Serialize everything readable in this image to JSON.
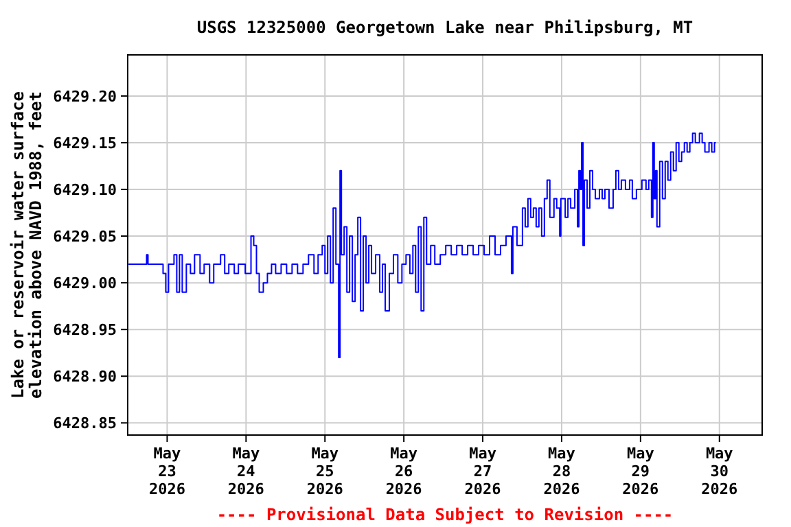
{
  "chart_data": {
    "type": "step",
    "title": "USGS 12325000 Georgetown Lake near Philipsburg, MT",
    "ylabel": "Lake or reservoir water surface\nelevation above NAVD 1988, feet",
    "annotations": [
      "---- Provisional Data Subject to Revision ----"
    ],
    "xlim": [
      "2026-05-22T12:00",
      "2026-05-30T13:00"
    ],
    "xticks": [
      {
        "value": "2026-05-23",
        "label": "May\n23\n2026"
      },
      {
        "value": "2026-05-24",
        "label": "May\n24\n2026"
      },
      {
        "value": "2026-05-25",
        "label": "May\n25\n2026"
      },
      {
        "value": "2026-05-26",
        "label": "May\n26\n2026"
      },
      {
        "value": "2026-05-27",
        "label": "May\n27\n2026"
      },
      {
        "value": "2026-05-28",
        "label": "May\n28\n2026"
      },
      {
        "value": "2026-05-29",
        "label": "May\n29\n2026"
      },
      {
        "value": "2026-05-30",
        "label": "May\n30\n2026"
      }
    ],
    "ylim": [
      6428.837,
      6429.244
    ],
    "yticks": [
      {
        "value": 6428.85,
        "label": "6428.85"
      },
      {
        "value": 6428.9,
        "label": "6428.90"
      },
      {
        "value": 6428.95,
        "label": "6428.95"
      },
      {
        "value": 6429,
        "label": "6429.00"
      },
      {
        "value": 6429.05,
        "label": "6429.05"
      },
      {
        "value": 6429.1,
        "label": "6429.10"
      },
      {
        "value": 6429.15,
        "label": "6429.15"
      },
      {
        "value": 6429.2,
        "label": "6429.20"
      }
    ],
    "grid": true,
    "series": [
      {
        "color": "#0000ff",
        "x": [
          "2026-05-22T12:15",
          "2026-05-22T17:20",
          "2026-05-22T17:45",
          "2026-05-22T18:10",
          "2026-05-22T22:20",
          "2026-05-22T22:45",
          "2026-05-22T23:35",
          "2026-05-23T00:25",
          "2026-05-23T02:05",
          "2026-05-23T02:55",
          "2026-05-23T03:45",
          "2026-05-23T04:35",
          "2026-05-23T05:50",
          "2026-05-23T07:05",
          "2026-05-23T08:20",
          "2026-05-23T10:00",
          "2026-05-23T11:15",
          "2026-05-23T12:55",
          "2026-05-23T14:10",
          "2026-05-23T16:15",
          "2026-05-23T17:30",
          "2026-05-23T18:45",
          "2026-05-23T20:25",
          "2026-05-23T21:40",
          "2026-05-23T23:45",
          "2026-05-24T01:30",
          "2026-05-24T02:20",
          "2026-05-24T03:10",
          "2026-05-24T04:00",
          "2026-05-24T05:15",
          "2026-05-24T06:30",
          "2026-05-24T07:45",
          "2026-05-24T09:00",
          "2026-05-24T10:40",
          "2026-05-24T12:20",
          "2026-05-24T14:00",
          "2026-05-24T15:40",
          "2026-05-24T17:20",
          "2026-05-24T19:00",
          "2026-05-24T20:40",
          "2026-05-24T21:55",
          "2026-05-24T23:10",
          "2026-05-25T00:00",
          "2026-05-25T00:50",
          "2026-05-25T01:40",
          "2026-05-25T02:30",
          "2026-05-25T03:20",
          "2026-05-25T04:10",
          "2026-05-25T04:35",
          "2026-05-25T05:00",
          "2026-05-25T05:50",
          "2026-05-25T06:40",
          "2026-05-25T07:30",
          "2026-05-25T08:20",
          "2026-05-25T09:10",
          "2026-05-25T10:00",
          "2026-05-25T10:50",
          "2026-05-25T11:40",
          "2026-05-25T12:30",
          "2026-05-25T13:20",
          "2026-05-25T14:10",
          "2026-05-25T15:25",
          "2026-05-25T16:40",
          "2026-05-25T17:30",
          "2026-05-25T18:20",
          "2026-05-25T19:35",
          "2026-05-25T20:50",
          "2026-05-25T22:10",
          "2026-05-25T23:25",
          "2026-05-26T00:40",
          "2026-05-26T01:50",
          "2026-05-26T02:45",
          "2026-05-26T03:35",
          "2026-05-26T04:25",
          "2026-05-26T05:15",
          "2026-05-26T06:05",
          "2026-05-26T06:55",
          "2026-05-26T08:10",
          "2026-05-26T09:25",
          "2026-05-26T11:05",
          "2026-05-26T12:45",
          "2026-05-26T14:25",
          "2026-05-26T16:05",
          "2026-05-26T17:45",
          "2026-05-26T19:25",
          "2026-05-26T21:05",
          "2026-05-26T22:45",
          "2026-05-27T00:25",
          "2026-05-27T02:05",
          "2026-05-27T03:45",
          "2026-05-27T05:25",
          "2026-05-27T07:05",
          "2026-05-27T08:45",
          "2026-05-27T09:10",
          "2026-05-27T10:25",
          "2026-05-27T12:05",
          "2026-05-27T12:55",
          "2026-05-27T13:45",
          "2026-05-27T14:35",
          "2026-05-27T15:25",
          "2026-05-27T16:15",
          "2026-05-27T17:05",
          "2026-05-27T17:55",
          "2026-05-27T18:45",
          "2026-05-27T19:35",
          "2026-05-27T20:25",
          "2026-05-27T21:40",
          "2026-05-27T22:30",
          "2026-05-27T23:25",
          "2026-05-27T23:45",
          "2026-05-28T01:05",
          "2026-05-28T01:55",
          "2026-05-28T02:45",
          "2026-05-28T04:00",
          "2026-05-28T04:50",
          "2026-05-28T05:15",
          "2026-05-28T05:40",
          "2026-05-28T06:05",
          "2026-05-28T06:30",
          "2026-05-28T06:55",
          "2026-05-28T07:45",
          "2026-05-28T08:35",
          "2026-05-28T09:25",
          "2026-05-28T10:15",
          "2026-05-28T11:30",
          "2026-05-28T12:20",
          "2026-05-28T13:10",
          "2026-05-28T14:25",
          "2026-05-28T15:40",
          "2026-05-28T16:30",
          "2026-05-28T17:20",
          "2026-05-28T18:10",
          "2026-05-28T19:25",
          "2026-05-28T20:40",
          "2026-05-28T21:30",
          "2026-05-28T22:45",
          "2026-05-29T00:25",
          "2026-05-29T01:40",
          "2026-05-29T02:30",
          "2026-05-29T03:20",
          "2026-05-29T03:45",
          "2026-05-29T04:10",
          "2026-05-29T04:35",
          "2026-05-29T05:00",
          "2026-05-29T05:50",
          "2026-05-29T06:40",
          "2026-05-29T07:30",
          "2026-05-29T08:20",
          "2026-05-29T09:10",
          "2026-05-29T10:00",
          "2026-05-29T10:50",
          "2026-05-29T11:40",
          "2026-05-29T12:30",
          "2026-05-29T13:20",
          "2026-05-29T14:10",
          "2026-05-29T15:00",
          "2026-05-29T15:50",
          "2026-05-29T16:40",
          "2026-05-29T17:55",
          "2026-05-29T18:45",
          "2026-05-29T19:35",
          "2026-05-29T20:50",
          "2026-05-29T21:40",
          "2026-05-29T22:30",
          "2026-05-29T22:55"
        ],
        "values": [
          6429.02,
          6429.02,
          6429.03,
          6429.02,
          6429.02,
          6429.01,
          6428.99,
          6429.02,
          6429.03,
          6428.99,
          6429.03,
          6428.99,
          6429.02,
          6429.01,
          6429.03,
          6429.01,
          6429.02,
          6429.0,
          6429.02,
          6429.03,
          6429.01,
          6429.02,
          6429.01,
          6429.02,
          6429.01,
          6429.05,
          6429.04,
          6429.01,
          6428.99,
          6429.0,
          6429.01,
          6429.02,
          6429.01,
          6429.02,
          6429.01,
          6429.02,
          6429.01,
          6429.02,
          6429.03,
          6429.01,
          6429.03,
          6429.04,
          6429.01,
          6429.05,
          6429.0,
          6429.08,
          6429.02,
          6428.92,
          6429.12,
          6429.03,
          6429.06,
          6428.99,
          6429.05,
          6428.98,
          6429.03,
          6429.07,
          6428.97,
          6429.05,
          6429.0,
          6429.04,
          6429.01,
          6429.03,
          6428.99,
          6429.02,
          6428.97,
          6429.01,
          6429.03,
          6429.0,
          6429.02,
          6429.03,
          6429.01,
          6429.04,
          6428.99,
          6429.06,
          6428.97,
          6429.07,
          6429.02,
          6429.04,
          6429.02,
          6429.03,
          6429.04,
          6429.03,
          6429.04,
          6429.03,
          6429.04,
          6429.03,
          6429.04,
          6429.03,
          6429.05,
          6429.03,
          6429.04,
          6429.05,
          6429.01,
          6429.06,
          6429.04,
          6429.08,
          6429.06,
          6429.09,
          6429.07,
          6429.08,
          6429.06,
          6429.08,
          6429.05,
          6429.09,
          6429.11,
          6429.07,
          6429.09,
          6429.08,
          6429.05,
          6429.09,
          6429.07,
          6429.09,
          6429.08,
          6429.1,
          6429.06,
          6429.12,
          6429.1,
          6429.15,
          6429.04,
          6429.11,
          6429.08,
          6429.12,
          6429.1,
          6429.09,
          6429.1,
          6429.09,
          6429.1,
          6429.08,
          6429.1,
          6429.12,
          6429.1,
          6429.11,
          6429.1,
          6429.11,
          6429.09,
          6429.1,
          6429.11,
          6429.1,
          6429.11,
          6429.07,
          6429.15,
          6429.09,
          6429.12,
          6429.06,
          6429.13,
          6429.09,
          6429.13,
          6429.11,
          6429.14,
          6429.12,
          6429.15,
          6429.13,
          6429.14,
          6429.15,
          6429.14,
          6429.15,
          6429.16,
          6429.15,
          6429.16,
          6429.15,
          6429.14,
          6429.15,
          6429.14,
          6429.15,
          6429.15
        ]
      }
    ]
  }
}
